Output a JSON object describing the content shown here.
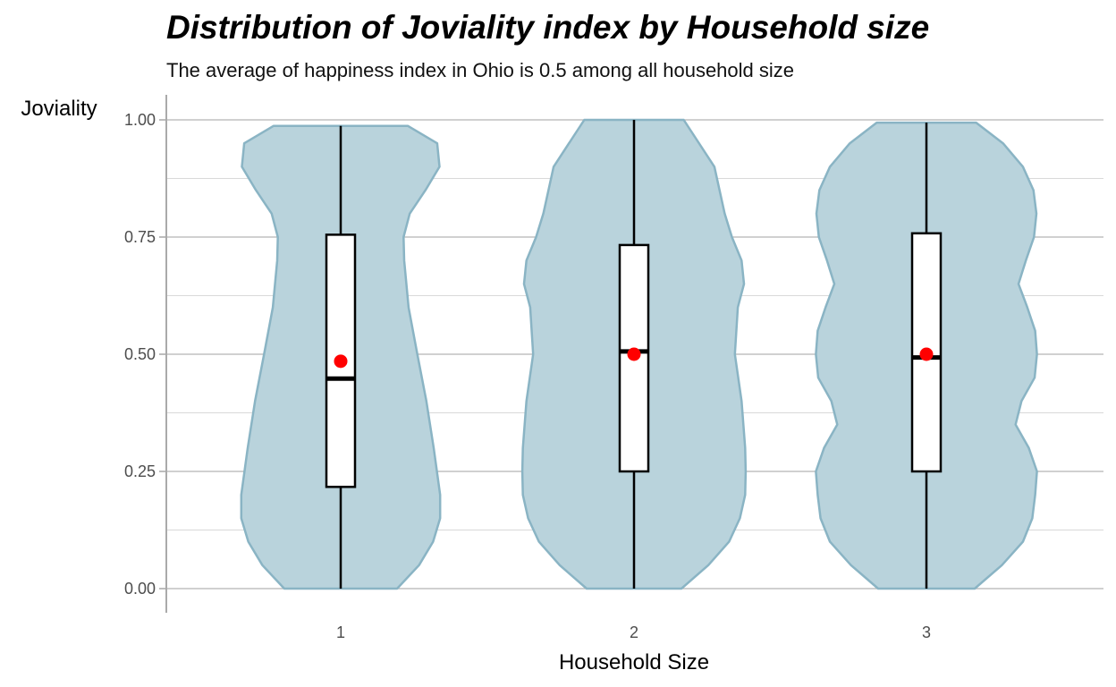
{
  "chart_data": {
    "type": "violin",
    "title": "Distribution of Joviality index by Household size",
    "subtitle": "The average of happiness index in Ohio is 0.5 among all household size",
    "xlabel": "Household Size",
    "ylabel": "Joviality",
    "ylim": [
      0,
      1
    ],
    "y_ticks": [
      {
        "value": 0.0,
        "label": "0.00"
      },
      {
        "value": 0.25,
        "label": "0.25"
      },
      {
        "value": 0.5,
        "label": "0.50"
      },
      {
        "value": 0.75,
        "label": "0.75"
      },
      {
        "value": 1.0,
        "label": "1.00"
      }
    ],
    "categories": [
      "1",
      "2",
      "3"
    ],
    "grid": true,
    "colors": {
      "violin_fill": "#b9d3dc",
      "violin_stroke": "#8ab4c4",
      "box_fill": "#ffffff",
      "box_stroke": "#000000",
      "mean_point": "#ff0000",
      "grid_major": "#b3b3b3",
      "grid_minor": "#d9d9d9"
    },
    "groups": [
      {
        "category": "1",
        "box": {
          "min": 0.0,
          "q1": 0.217,
          "median": 0.448,
          "q3": 0.755,
          "max": 0.987
        },
        "mean": 0.485,
        "violin": {
          "y": [
            0.0,
            0.05,
            0.1,
            0.15,
            0.2,
            0.3,
            0.4,
            0.5,
            0.6,
            0.7,
            0.75,
            0.8,
            0.85,
            0.9,
            0.95,
            0.987
          ],
          "width": [
            0.193,
            0.268,
            0.316,
            0.34,
            0.34,
            0.318,
            0.293,
            0.262,
            0.232,
            0.217,
            0.215,
            0.236,
            0.29,
            0.338,
            0.33,
            0.23
          ]
        }
      },
      {
        "category": "2",
        "box": {
          "min": 0.0,
          "q1": 0.25,
          "median": 0.506,
          "q3": 0.733,
          "max": 1.0
        },
        "mean": 0.5,
        "violin": {
          "y": [
            0.0,
            0.05,
            0.1,
            0.15,
            0.2,
            0.25,
            0.3,
            0.4,
            0.5,
            0.6,
            0.65,
            0.7,
            0.75,
            0.8,
            0.9,
            1.0
          ],
          "width": [
            0.162,
            0.254,
            0.325,
            0.362,
            0.38,
            0.382,
            0.38,
            0.368,
            0.345,
            0.355,
            0.376,
            0.368,
            0.335,
            0.31,
            0.275,
            0.17
          ]
        }
      },
      {
        "category": "3",
        "box": {
          "min": 0.0,
          "q1": 0.25,
          "median": 0.493,
          "q3": 0.758,
          "max": 0.994
        },
        "mean": 0.5,
        "violin": {
          "y": [
            0.0,
            0.05,
            0.1,
            0.15,
            0.2,
            0.25,
            0.3,
            0.35,
            0.4,
            0.45,
            0.5,
            0.55,
            0.6,
            0.65,
            0.7,
            0.75,
            0.8,
            0.85,
            0.9,
            0.95,
            0.994
          ],
          "width": [
            0.165,
            0.258,
            0.33,
            0.362,
            0.372,
            0.378,
            0.35,
            0.305,
            0.325,
            0.37,
            0.378,
            0.372,
            0.345,
            0.315,
            0.34,
            0.368,
            0.376,
            0.366,
            0.33,
            0.262,
            0.17
          ]
        }
      }
    ]
  }
}
